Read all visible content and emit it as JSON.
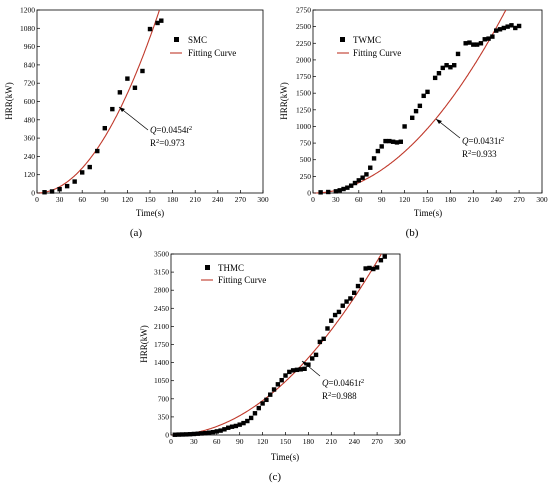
{
  "chart_data": [
    {
      "type": "scatter",
      "panel_label": "(a)",
      "xlabel": "Time(s)",
      "ylabel": "HRR(kW)",
      "xlim": [
        0,
        300
      ],
      "ylim": [
        0,
        1200
      ],
      "xticks": [
        0,
        30,
        60,
        90,
        120,
        150,
        180,
        210,
        240,
        270,
        300
      ],
      "yticks": [
        0,
        120,
        240,
        360,
        480,
        600,
        720,
        840,
        960,
        1080,
        1200
      ],
      "legend_position": "top-right",
      "series": [
        {
          "name": "SMC",
          "kind": "scatter",
          "x": [
            10,
            20,
            30,
            40,
            50,
            60,
            70,
            80,
            90,
            100,
            110,
            120,
            130,
            140,
            150,
            160,
            165
          ],
          "y": [
            5,
            10,
            25,
            45,
            75,
            135,
            170,
            275,
            425,
            550,
            660,
            750,
            690,
            800,
            1075,
            1115,
            1130
          ]
        },
        {
          "name": "Fitting Curve",
          "kind": "fit",
          "coefficient": 0.0454,
          "color": "#c0392b"
        }
      ],
      "annotation": {
        "fit_var": "Q",
        "fit_eq": "=0.0454",
        "fit_t": "t",
        "fit_sup": "2",
        "r2_label": "R",
        "r2_sup": "2",
        "r2_value": "=0.973"
      }
    },
    {
      "type": "scatter",
      "panel_label": "(b)",
      "xlabel": "Time(s)",
      "ylabel": "HRR(kW)",
      "xlim": [
        0,
        300
      ],
      "ylim": [
        0,
        2750
      ],
      "xticks": [
        0,
        30,
        60,
        90,
        120,
        150,
        180,
        210,
        240,
        270,
        300
      ],
      "yticks": [
        0,
        250,
        500,
        750,
        1000,
        1250,
        1500,
        1750,
        2000,
        2250,
        2500,
        2750
      ],
      "legend_position": "top-right",
      "series": [
        {
          "name": "TWMC",
          "kind": "scatter",
          "x": [
            10,
            20,
            30,
            35,
            40,
            45,
            50,
            55,
            60,
            65,
            70,
            75,
            80,
            85,
            90,
            95,
            100,
            105,
            110,
            115,
            120,
            130,
            135,
            140,
            145,
            150,
            160,
            165,
            170,
            175,
            180,
            185,
            190,
            200,
            205,
            210,
            215,
            220,
            225,
            230,
            235,
            240,
            245,
            250,
            255,
            260,
            265,
            270
          ],
          "y": [
            10,
            15,
            25,
            40,
            60,
            80,
            110,
            150,
            190,
            230,
            280,
            380,
            520,
            630,
            700,
            780,
            780,
            770,
            760,
            770,
            1000,
            1130,
            1230,
            1310,
            1460,
            1520,
            1730,
            1800,
            1880,
            1920,
            1890,
            1920,
            2090,
            2250,
            2260,
            2230,
            2230,
            2250,
            2310,
            2320,
            2350,
            2440,
            2460,
            2480,
            2500,
            2520,
            2480,
            2510
          ]
        },
        {
          "name": "Fitting Curve",
          "kind": "fit",
          "coefficient": 0.0431,
          "color": "#c0392b"
        }
      ],
      "annotation": {
        "fit_var": "Q",
        "fit_eq": "=0.0431",
        "fit_t": "t",
        "fit_sup": "2",
        "r2_label": "R",
        "r2_sup": "2",
        "r2_value": "=0.933"
      }
    },
    {
      "type": "scatter",
      "panel_label": "(c)",
      "xlabel": "Time(s)",
      "ylabel": "HRR(kW)",
      "xlim": [
        0,
        300
      ],
      "ylim": [
        0,
        3500
      ],
      "xticks": [
        0,
        30,
        60,
        90,
        120,
        150,
        180,
        210,
        240,
        270,
        300
      ],
      "yticks": [
        0,
        350,
        700,
        1050,
        1400,
        1750,
        2100,
        2450,
        2800,
        3150,
        3500
      ],
      "legend_position": "top-left",
      "series": [
        {
          "name": "THMC",
          "kind": "scatter",
          "x": [
            5,
            10,
            15,
            20,
            25,
            30,
            35,
            40,
            45,
            50,
            55,
            60,
            65,
            70,
            75,
            80,
            85,
            90,
            95,
            100,
            105,
            110,
            115,
            120,
            125,
            130,
            135,
            140,
            145,
            150,
            155,
            160,
            165,
            170,
            175,
            180,
            185,
            190,
            195,
            200,
            205,
            210,
            215,
            220,
            225,
            230,
            235,
            240,
            245,
            250,
            255,
            260,
            265,
            270,
            275,
            280
          ],
          "y": [
            5,
            8,
            10,
            12,
            15,
            20,
            25,
            30,
            35,
            45,
            55,
            70,
            85,
            110,
            140,
            160,
            175,
            200,
            230,
            270,
            330,
            420,
            520,
            610,
            680,
            780,
            880,
            980,
            1060,
            1150,
            1220,
            1250,
            1260,
            1270,
            1280,
            1360,
            1480,
            1550,
            1800,
            1860,
            2060,
            2210,
            2320,
            2380,
            2500,
            2580,
            2640,
            2750,
            2880,
            3000,
            3220,
            3230,
            3210,
            3240,
            3380,
            3450
          ]
        },
        {
          "name": "Fitting Curve",
          "kind": "fit",
          "coefficient": 0.0461,
          "color": "#c0392b"
        }
      ],
      "annotation": {
        "fit_var": "Q",
        "fit_eq": "=0.0461",
        "fit_t": "t",
        "fit_sup": "2",
        "r2_label": "R",
        "r2_sup": "2",
        "r2_value": "=0.988"
      }
    }
  ]
}
